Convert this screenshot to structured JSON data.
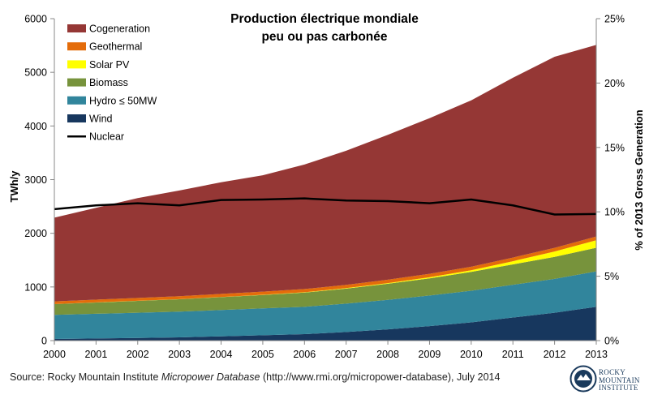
{
  "chart_data": {
    "type": "area",
    "title_line1": "Production électrique mondiale",
    "title_line2": "peu ou pas carbonée",
    "ylabel_left": "TWh/y",
    "ylabel_right": "% of 2013 Gross Generation",
    "x": [
      2000,
      2001,
      2002,
      2003,
      2004,
      2005,
      2006,
      2007,
      2008,
      2009,
      2010,
      2011,
      2012,
      2013
    ],
    "xticks": [
      "2000",
      "2001",
      "2002",
      "2003",
      "2004",
      "2005",
      "2006",
      "2007",
      "2008",
      "2009",
      "2010",
      "2011",
      "2012",
      "2013"
    ],
    "ylim_left": [
      0,
      6000
    ],
    "yticks_left": [
      "0",
      "1000",
      "2000",
      "3000",
      "4000",
      "5000",
      "6000"
    ],
    "ylim_right": [
      0,
      25
    ],
    "yticks_right": [
      "0%",
      "5%",
      "10%",
      "15%",
      "20%",
      "25%"
    ],
    "stack_order": [
      "Wind",
      "Hydro ≤ 50MW",
      "Biomass",
      "Solar PV",
      "Geothermal",
      "Cogeneration"
    ],
    "series": [
      {
        "name": "Cogeneration",
        "type": "area",
        "color": "#953735",
        "values": [
          1560,
          1710,
          1860,
          1970,
          2080,
          2170,
          2320,
          2500,
          2700,
          2900,
          3100,
          3350,
          3560,
          3570
        ]
      },
      {
        "name": "Geothermal",
        "type": "area",
        "color": "#e46c0a",
        "values": [
          50,
          52,
          54,
          55,
          57,
          58,
          60,
          61,
          63,
          65,
          66,
          68,
          69,
          71
        ]
      },
      {
        "name": "Solar PV",
        "type": "area",
        "color": "#ffff00",
        "values": [
          1,
          2,
          2,
          3,
          3,
          4,
          6,
          8,
          12,
          20,
          32,
          60,
          100,
          140
        ]
      },
      {
        "name": "Biomass",
        "type": "area",
        "color": "#77933c",
        "values": [
          200,
          210,
          220,
          230,
          240,
          250,
          265,
          280,
          300,
          320,
          350,
          380,
          410,
          440
        ]
      },
      {
        "name": "Hydro ≤ 50MW",
        "type": "area",
        "color": "#31859c",
        "values": [
          450,
          460,
          470,
          480,
          490,
          500,
          510,
          530,
          550,
          570,
          590,
          610,
          630,
          660
        ]
      },
      {
        "name": "Wind",
        "type": "area",
        "color": "#17375e",
        "values": [
          30,
          40,
          50,
          60,
          80,
          100,
          120,
          160,
          210,
          270,
          340,
          430,
          520,
          630
        ]
      },
      {
        "name": "Nuclear",
        "type": "line",
        "color": "#000000",
        "values": [
          2450,
          2520,
          2560,
          2520,
          2620,
          2630,
          2650,
          2610,
          2600,
          2560,
          2630,
          2520,
          2350,
          2360
        ]
      }
    ],
    "legend_position": "top-left",
    "grid": false
  },
  "source": {
    "prefix": "Source: Rocky Mountain Institute ",
    "italic": "Micropower Database",
    "suffix": " (http://www.rmi.org/micropower-database), July 2014"
  },
  "logo": {
    "line1": "ROCKY",
    "line2": "MOUNTAIN",
    "line3": "INSTITUTE"
  }
}
